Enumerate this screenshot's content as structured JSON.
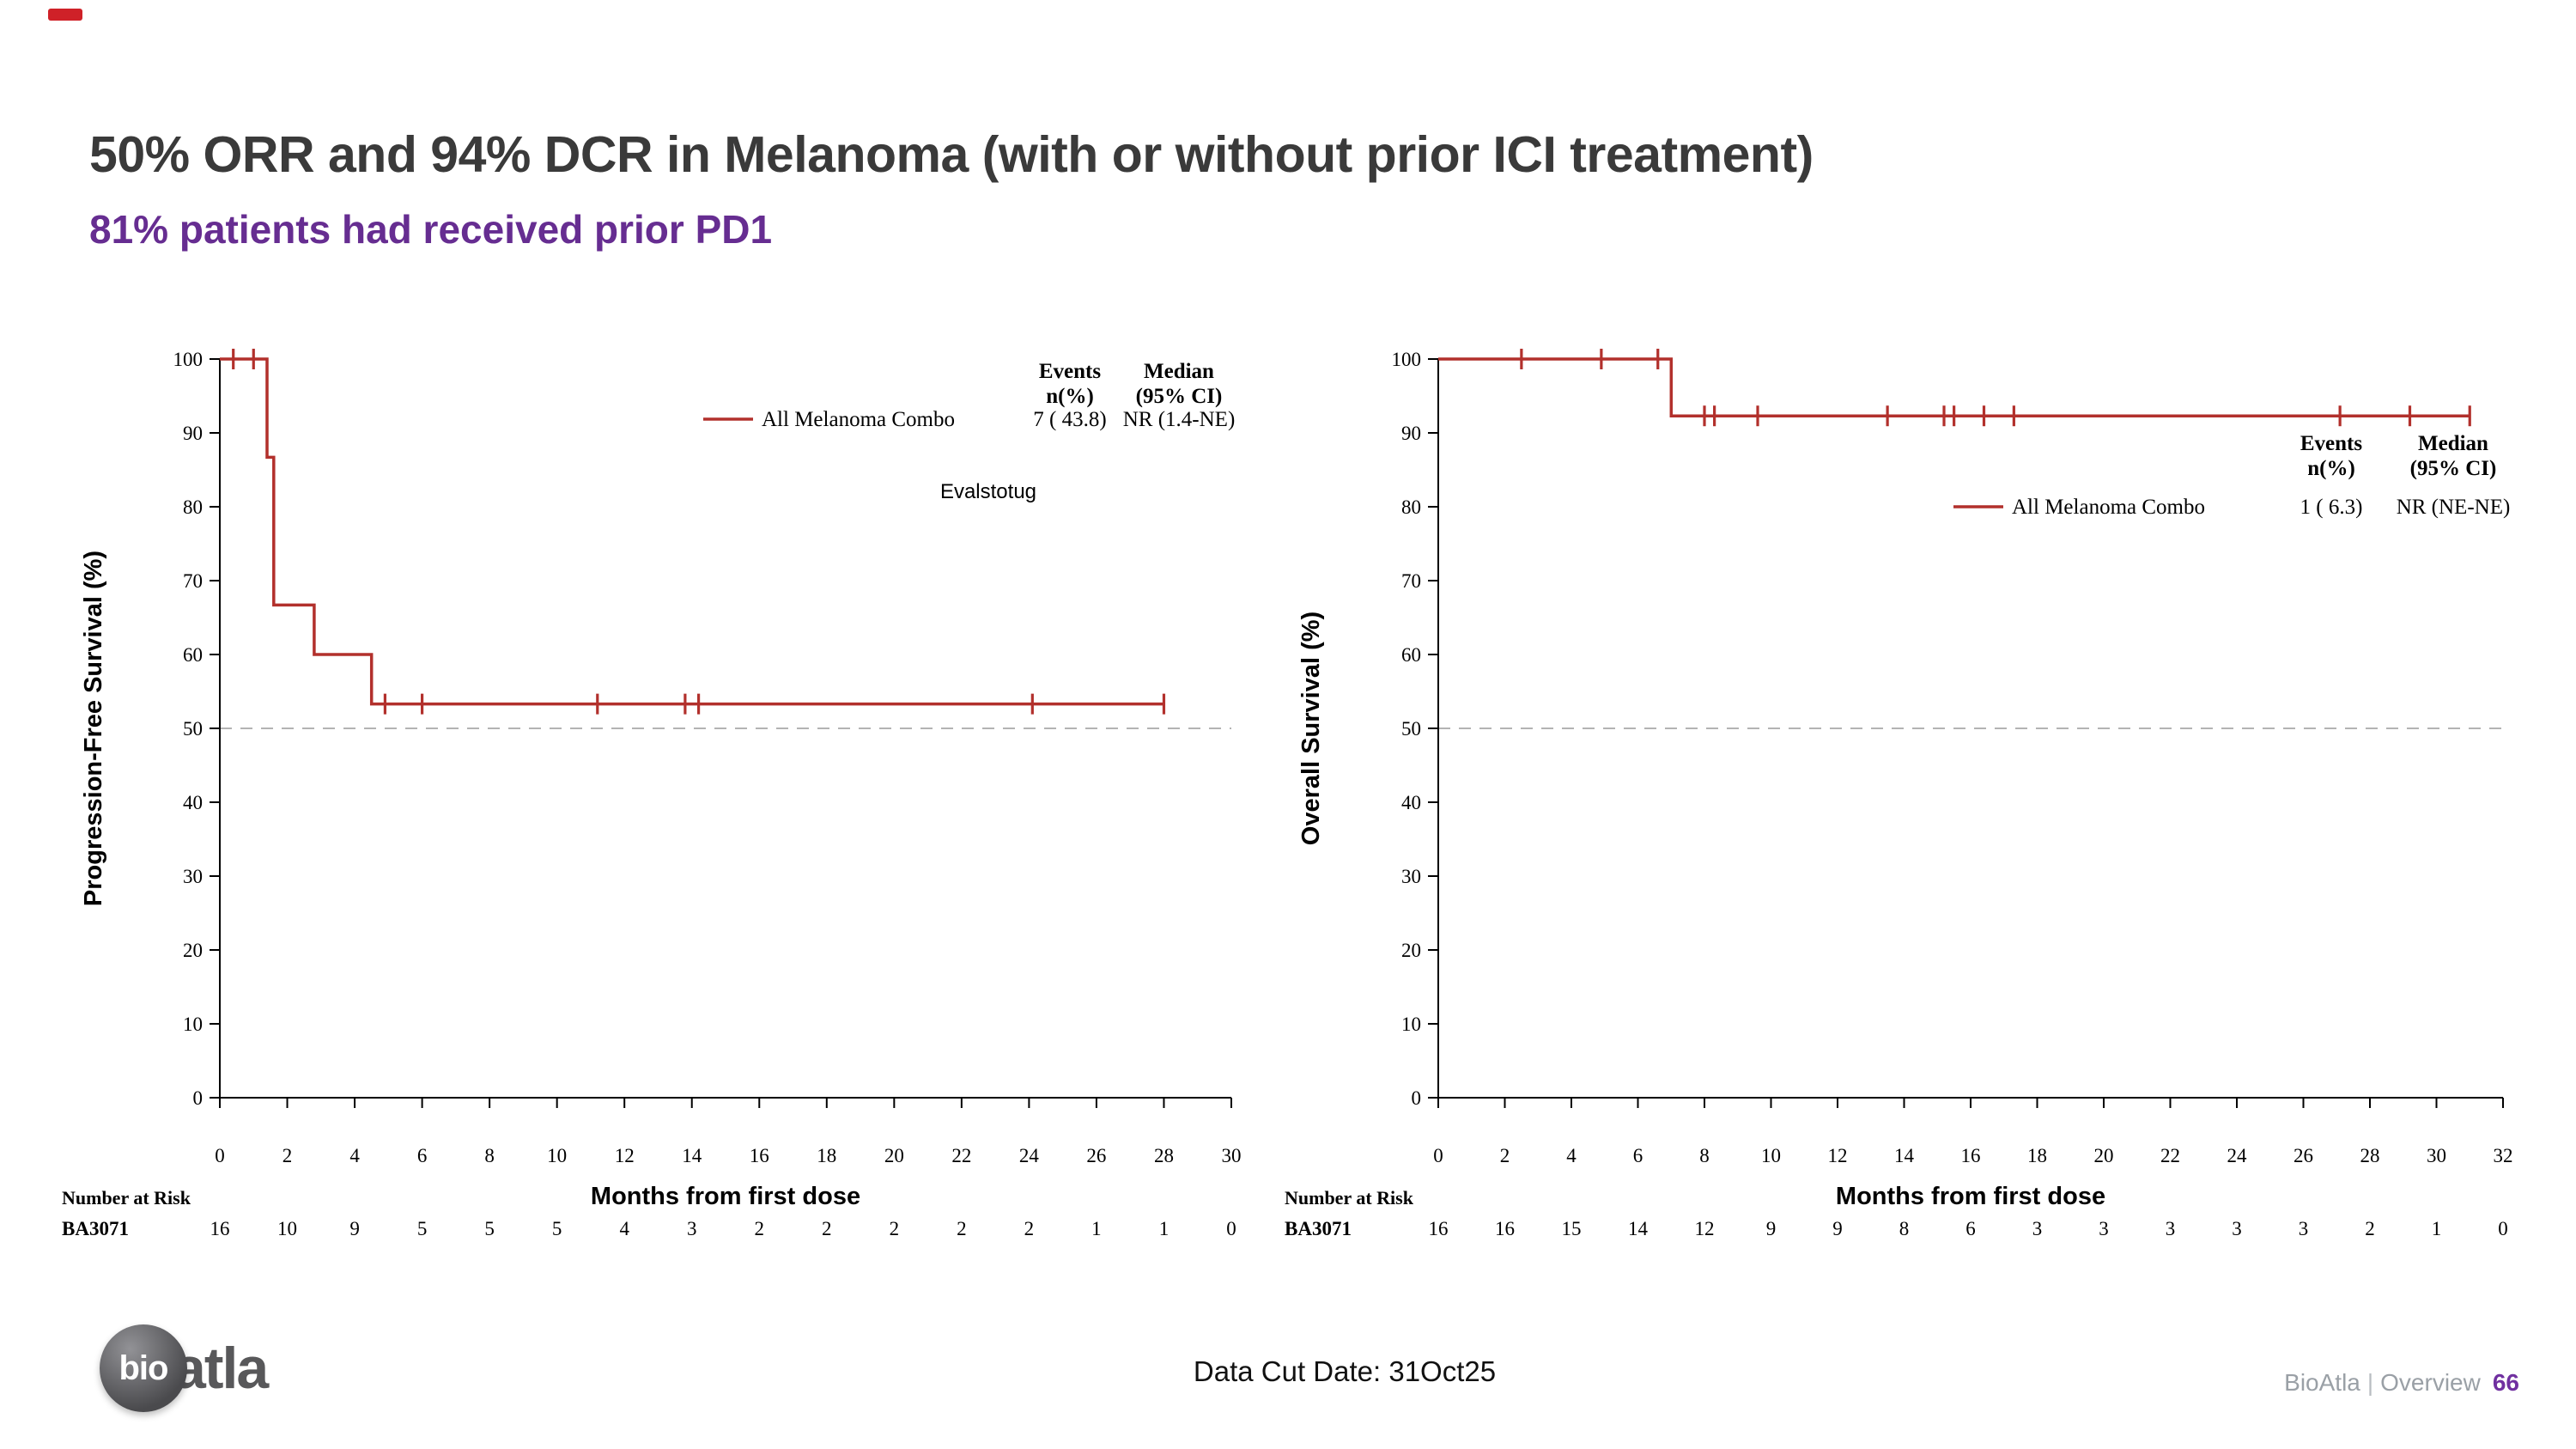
{
  "slide": {
    "title": "50% ORR and 94% DCR in Melanoma (with or without prior ICI treatment)",
    "subtitle": "81% patients had received prior PD1"
  },
  "footer": {
    "data_cut_date": "Data Cut Date: 31Oct25",
    "brand_name": "BioAtla",
    "separator": "|",
    "section_name": "Overview",
    "page_number": "66",
    "logo_part_1": "bio",
    "logo_part_2": "atla"
  },
  "colors": {
    "title": "#3a3a3a",
    "subtitle_purple": "#662d91",
    "km_red": "#b2302c",
    "page_number_purple": "#7030a0",
    "footer_gray": "#9aa0a6",
    "reference_line_gray": "#b3b3b3"
  },
  "chart_data": [
    {
      "type": "line",
      "subtype": "kaplan-meier-step",
      "title": "",
      "ylabel": "Progression-Free Survival (%)",
      "xlabel": "Months from first dose",
      "xlim": [
        0,
        30
      ],
      "ylim": [
        0,
        100
      ],
      "xtick_step": 2,
      "ytick_step": 10,
      "grid": false,
      "reference_line_y": 50,
      "legend_position": "top-right-inside",
      "legend_headers": {
        "col1_line1": "Events",
        "col1_line2": "n(%)",
        "col2_line1": "Median",
        "col2_line2": "(95% CI)"
      },
      "annotation": "Evalstotug",
      "series": [
        {
          "name": "All Melanoma Combo",
          "color": "#b2302c",
          "events_n_pct": "7 ( 43.8)",
          "median_95_ci": "NR (1.4-NE)",
          "step_points": [
            [
              0,
              100
            ],
            [
              1.4,
              100
            ],
            [
              1.4,
              86.7
            ],
            [
              1.6,
              86.7
            ],
            [
              1.6,
              66.7
            ],
            [
              2.8,
              66.7
            ],
            [
              2.8,
              60
            ],
            [
              4.5,
              60
            ],
            [
              4.5,
              53.3
            ],
            [
              28,
              53.3
            ]
          ],
          "censor_marks": [
            [
              0.4,
              100
            ],
            [
              1.0,
              100
            ],
            [
              4.9,
              53.3
            ],
            [
              6.0,
              53.3
            ],
            [
              11.2,
              53.3
            ],
            [
              13.8,
              53.3
            ],
            [
              14.2,
              53.3
            ],
            [
              24.1,
              53.3
            ],
            [
              28,
              53.3
            ]
          ]
        }
      ],
      "number_at_risk": {
        "title": "Number at Risk",
        "group": "BA3071",
        "values": [
          "16",
          "10",
          "9",
          "5",
          "5",
          "5",
          "4",
          "3",
          "2",
          "2",
          "2",
          "2",
          "2",
          "1",
          "1",
          "0"
        ]
      }
    },
    {
      "type": "line",
      "subtype": "kaplan-meier-step",
      "title": "",
      "ylabel": "Overall Survival (%)",
      "xlabel": "Months from first dose",
      "xlim": [
        0,
        32
      ],
      "ylim": [
        0,
        100
      ],
      "xtick_step": 2,
      "ytick_step": 10,
      "grid": false,
      "reference_line_y": 50,
      "legend_position": "right-inside",
      "legend_headers": {
        "col1_line1": "Events",
        "col1_line2": "n(%)",
        "col2_line1": "Median",
        "col2_line2": "(95% CI)"
      },
      "annotation": "",
      "series": [
        {
          "name": "All Melanoma Combo",
          "color": "#b2302c",
          "events_n_pct": "1 ( 6.3)",
          "median_95_ci": "NR (NE-NE)",
          "step_points": [
            [
              0,
              100
            ],
            [
              7,
              100
            ],
            [
              7,
              92.3
            ],
            [
              31,
              92.3
            ]
          ],
          "censor_marks": [
            [
              2.5,
              100
            ],
            [
              4.9,
              100
            ],
            [
              6.6,
              100
            ],
            [
              8.0,
              92.3
            ],
            [
              8.3,
              92.3
            ],
            [
              9.6,
              92.3
            ],
            [
              13.5,
              92.3
            ],
            [
              15.2,
              92.3
            ],
            [
              15.5,
              92.3
            ],
            [
              16.4,
              92.3
            ],
            [
              17.3,
              92.3
            ],
            [
              27.1,
              92.3
            ],
            [
              29.2,
              92.3
            ],
            [
              31,
              92.3
            ]
          ]
        }
      ],
      "number_at_risk": {
        "title": "Number at Risk",
        "group": "BA3071",
        "values": [
          "16",
          "16",
          "15",
          "14",
          "12",
          "9",
          "9",
          "8",
          "6",
          "3",
          "3",
          "3",
          "3",
          "3",
          "2",
          "1",
          "0"
        ]
      }
    }
  ]
}
